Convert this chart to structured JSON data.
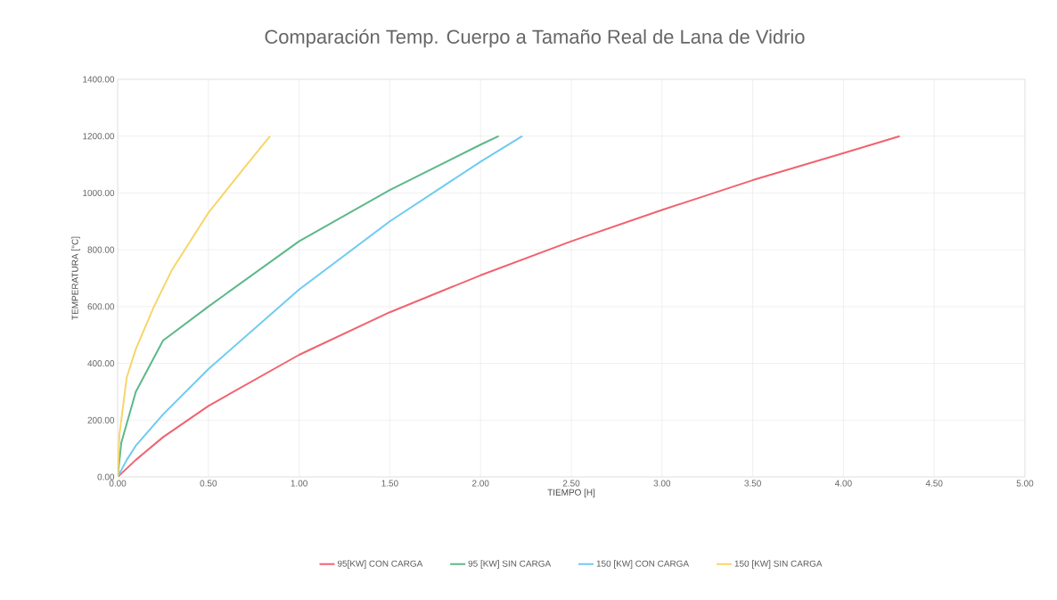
{
  "chart_data": {
    "type": "line",
    "title": "Comparación Temp. Cuerpo a Tamaño Real de Lana de Vidrio",
    "xlabel": "TIEMPO [H]",
    "ylabel": "TEMPERATURA [°C]",
    "series": [
      {
        "name": "95[KW] CON CARGA",
        "color": "#f0636f",
        "x": [
          0,
          0.1,
          0.25,
          0.5,
          1.0,
          1.5,
          2.0,
          2.5,
          3.0,
          3.5,
          4.0,
          4.31
        ],
        "values": [
          0,
          60,
          140,
          250,
          430,
          580,
          710,
          830,
          940,
          1045,
          1140,
          1200
        ]
      },
      {
        "name": "95 [KW] SIN CARGA",
        "color": "#5cb88a",
        "x": [
          0,
          0.02,
          0.1,
          0.25,
          0.5,
          1.0,
          1.5,
          2.0,
          2.1
        ],
        "values": [
          0,
          120,
          300,
          480,
          600,
          830,
          1010,
          1170,
          1200
        ]
      },
      {
        "name": "150 [KW] CON CARGA",
        "color": "#6ecbf0",
        "x": [
          0,
          0.05,
          0.1,
          0.25,
          0.5,
          1.0,
          1.5,
          2.0,
          2.23
        ],
        "values": [
          0,
          60,
          110,
          220,
          380,
          660,
          900,
          1110,
          1200
        ]
      },
      {
        "name": "150 [KW] SIN CARGA",
        "color": "#f7d56b",
        "x": [
          0,
          0.01,
          0.05,
          0.1,
          0.2,
          0.3,
          0.5,
          0.7,
          0.84
        ],
        "values": [
          0,
          150,
          350,
          450,
          600,
          730,
          930,
          1090,
          1200
        ]
      }
    ],
    "xlim": [
      0,
      5
    ],
    "ylim": [
      0,
      1400
    ],
    "xticks": [
      {
        "value": 0,
        "label": "0.00"
      },
      {
        "value": 0.5,
        "label": "0.50"
      },
      {
        "value": 1,
        "label": "1.00"
      },
      {
        "value": 1.5,
        "label": "1.50"
      },
      {
        "value": 2,
        "label": "2.00"
      },
      {
        "value": 2.5,
        "label": "2.50"
      },
      {
        "value": 3,
        "label": "3.00"
      },
      {
        "value": 3.5,
        "label": "3.50"
      },
      {
        "value": 4,
        "label": "4.00"
      },
      {
        "value": 4.5,
        "label": "4.50"
      },
      {
        "value": 5,
        "label": "5.00"
      }
    ],
    "yticks": [
      {
        "value": 0,
        "label": "0.00"
      },
      {
        "value": 200,
        "label": "200.00"
      },
      {
        "value": 400,
        "label": "400.00"
      },
      {
        "value": 600,
        "label": "600.00"
      },
      {
        "value": 800,
        "label": "800.00"
      },
      {
        "value": 1000,
        "label": "1000.00"
      },
      {
        "value": 1200,
        "label": "1200.00"
      },
      {
        "value": 1400,
        "label": "1400.00"
      }
    ],
    "grid": true,
    "legend": "bottom",
    "marker": "none",
    "line_style": "solid"
  }
}
